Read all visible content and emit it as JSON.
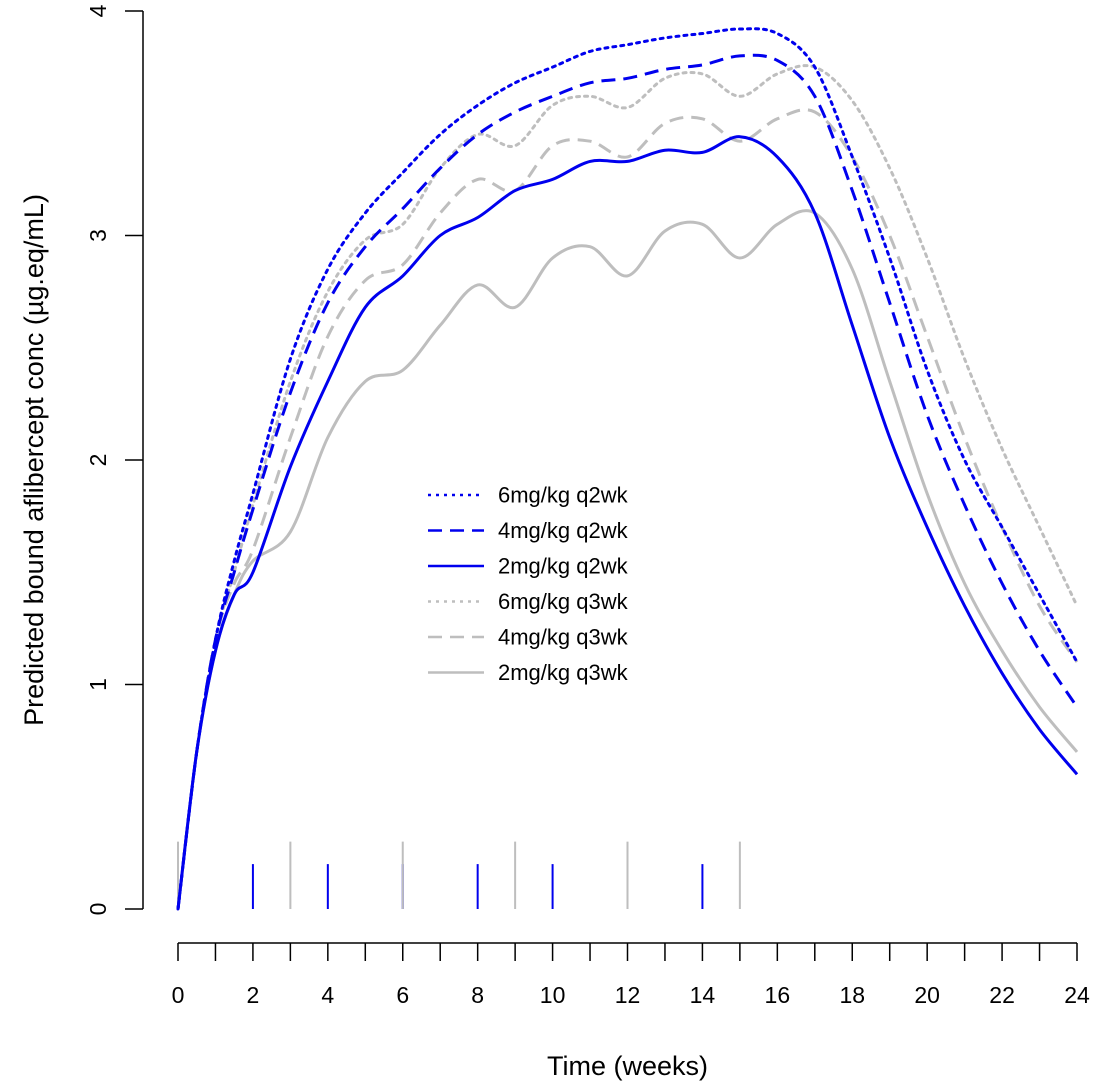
{
  "chart_data": {
    "type": "line",
    "title": "",
    "xlabel": "Time (weeks)",
    "ylabel": "Predicted bound aflibercept conc (µg.eq/mL)",
    "xlim": [
      0,
      24
    ],
    "ylim": [
      0,
      4
    ],
    "x_ticks": [
      0,
      2,
      4,
      6,
      8,
      10,
      12,
      14,
      16,
      18,
      20,
      22,
      24
    ],
    "x_minor_step": 1,
    "y_ticks": [
      0,
      1,
      2,
      3,
      4
    ],
    "grid": false,
    "legend_position": "center",
    "series": [
      {
        "name": "6mg/kg q2wk",
        "color": "#0000EE",
        "dash": "dotted",
        "points": [
          [
            0,
            0
          ],
          [
            0.5,
            0.7
          ],
          [
            1,
            1.2
          ],
          [
            1.5,
            1.55
          ],
          [
            2,
            1.85
          ],
          [
            3,
            2.45
          ],
          [
            4,
            2.85
          ],
          [
            5,
            3.1
          ],
          [
            6,
            3.28
          ],
          [
            7,
            3.45
          ],
          [
            8,
            3.58
          ],
          [
            9,
            3.68
          ],
          [
            10,
            3.75
          ],
          [
            11,
            3.82
          ],
          [
            12,
            3.85
          ],
          [
            13,
            3.88
          ],
          [
            14,
            3.9
          ],
          [
            15,
            3.92
          ],
          [
            16,
            3.9
          ],
          [
            17,
            3.75
          ],
          [
            18,
            3.35
          ],
          [
            19,
            2.9
          ],
          [
            20,
            2.4
          ],
          [
            21,
            2.0
          ],
          [
            22,
            1.7
          ],
          [
            23,
            1.4
          ],
          [
            24,
            1.1
          ]
        ]
      },
      {
        "name": "4mg/kg q2wk",
        "color": "#0000EE",
        "dash": "dashed",
        "points": [
          [
            0,
            0
          ],
          [
            0.5,
            0.7
          ],
          [
            1,
            1.2
          ],
          [
            1.5,
            1.5
          ],
          [
            2,
            1.78
          ],
          [
            3,
            2.3
          ],
          [
            4,
            2.7
          ],
          [
            5,
            2.95
          ],
          [
            6,
            3.12
          ],
          [
            7,
            3.3
          ],
          [
            8,
            3.45
          ],
          [
            9,
            3.55
          ],
          [
            10,
            3.62
          ],
          [
            11,
            3.68
          ],
          [
            12,
            3.7
          ],
          [
            13,
            3.74
          ],
          [
            14,
            3.76
          ],
          [
            15,
            3.8
          ],
          [
            16,
            3.78
          ],
          [
            17,
            3.62
          ],
          [
            18,
            3.2
          ],
          [
            19,
            2.7
          ],
          [
            20,
            2.2
          ],
          [
            21,
            1.8
          ],
          [
            22,
            1.45
          ],
          [
            23,
            1.15
          ],
          [
            24,
            0.9
          ]
        ]
      },
      {
        "name": "2mg/kg q2wk",
        "color": "#0000EE",
        "dash": "solid",
        "points": [
          [
            0,
            0
          ],
          [
            0.5,
            0.7
          ],
          [
            1,
            1.15
          ],
          [
            1.5,
            1.4
          ],
          [
            2,
            1.5
          ],
          [
            3,
            1.97
          ],
          [
            4,
            2.35
          ],
          [
            5,
            2.68
          ],
          [
            6,
            2.82
          ],
          [
            7,
            3.0
          ],
          [
            8,
            3.08
          ],
          [
            9,
            3.2
          ],
          [
            10,
            3.25
          ],
          [
            11,
            3.33
          ],
          [
            12,
            3.33
          ],
          [
            13,
            3.38
          ],
          [
            14,
            3.37
          ],
          [
            15,
            3.44
          ],
          [
            16,
            3.35
          ],
          [
            17,
            3.1
          ],
          [
            18,
            2.6
          ],
          [
            19,
            2.1
          ],
          [
            20,
            1.7
          ],
          [
            21,
            1.35
          ],
          [
            22,
            1.05
          ],
          [
            23,
            0.8
          ],
          [
            24,
            0.6
          ]
        ]
      },
      {
        "name": "6mg/kg q3wk",
        "color": "#BEBEBE",
        "dash": "dotted",
        "points": [
          [
            0,
            0
          ],
          [
            0.5,
            0.7
          ],
          [
            1,
            1.2
          ],
          [
            1.5,
            1.5
          ],
          [
            2,
            1.8
          ],
          [
            3,
            2.35
          ],
          [
            4,
            2.75
          ],
          [
            5,
            2.98
          ],
          [
            6,
            3.05
          ],
          [
            7,
            3.3
          ],
          [
            8,
            3.45
          ],
          [
            9,
            3.4
          ],
          [
            10,
            3.58
          ],
          [
            11,
            3.62
          ],
          [
            12,
            3.57
          ],
          [
            13,
            3.7
          ],
          [
            14,
            3.72
          ],
          [
            15,
            3.62
          ],
          [
            16,
            3.72
          ],
          [
            17,
            3.75
          ],
          [
            18,
            3.6
          ],
          [
            19,
            3.3
          ],
          [
            20,
            2.9
          ],
          [
            21,
            2.45
          ],
          [
            22,
            2.05
          ],
          [
            23,
            1.7
          ],
          [
            24,
            1.35
          ]
        ]
      },
      {
        "name": "4mg/kg q3wk",
        "color": "#BEBEBE",
        "dash": "dashed",
        "points": [
          [
            0,
            0
          ],
          [
            0.5,
            0.7
          ],
          [
            1,
            1.2
          ],
          [
            1.5,
            1.45
          ],
          [
            2,
            1.6
          ],
          [
            3,
            2.1
          ],
          [
            4,
            2.55
          ],
          [
            5,
            2.8
          ],
          [
            6,
            2.87
          ],
          [
            7,
            3.1
          ],
          [
            8,
            3.25
          ],
          [
            9,
            3.2
          ],
          [
            10,
            3.4
          ],
          [
            11,
            3.42
          ],
          [
            12,
            3.35
          ],
          [
            13,
            3.5
          ],
          [
            14,
            3.52
          ],
          [
            15,
            3.42
          ],
          [
            16,
            3.52
          ],
          [
            17,
            3.55
          ],
          [
            18,
            3.35
          ],
          [
            19,
            3.0
          ],
          [
            20,
            2.55
          ],
          [
            21,
            2.1
          ],
          [
            22,
            1.7
          ],
          [
            23,
            1.35
          ],
          [
            24,
            1.1
          ]
        ]
      },
      {
        "name": "2mg/kg q3wk",
        "color": "#BEBEBE",
        "dash": "solid",
        "points": [
          [
            0,
            0
          ],
          [
            0.5,
            0.7
          ],
          [
            1,
            1.15
          ],
          [
            1.5,
            1.4
          ],
          [
            2,
            1.55
          ],
          [
            3,
            1.68
          ],
          [
            4,
            2.1
          ],
          [
            5,
            2.35
          ],
          [
            6,
            2.4
          ],
          [
            7,
            2.6
          ],
          [
            8,
            2.78
          ],
          [
            9,
            2.68
          ],
          [
            10,
            2.9
          ],
          [
            11,
            2.95
          ],
          [
            12,
            2.82
          ],
          [
            13,
            3.02
          ],
          [
            14,
            3.05
          ],
          [
            15,
            2.9
          ],
          [
            16,
            3.05
          ],
          [
            17,
            3.1
          ],
          [
            18,
            2.85
          ],
          [
            19,
            2.35
          ],
          [
            20,
            1.85
          ],
          [
            21,
            1.45
          ],
          [
            22,
            1.15
          ],
          [
            23,
            0.9
          ],
          [
            24,
            0.7
          ]
        ]
      }
    ],
    "dosing_marks": [
      {
        "regimen": "q2wk",
        "color": "#0000EE",
        "weeks": [
          0,
          2,
          4,
          6,
          8,
          10,
          12,
          14
        ],
        "height": 0.2
      },
      {
        "regimen": "q3wk",
        "color": "#BEBEBE",
        "weeks": [
          0,
          3,
          6,
          9,
          12,
          15
        ],
        "height": 0.3
      }
    ]
  }
}
